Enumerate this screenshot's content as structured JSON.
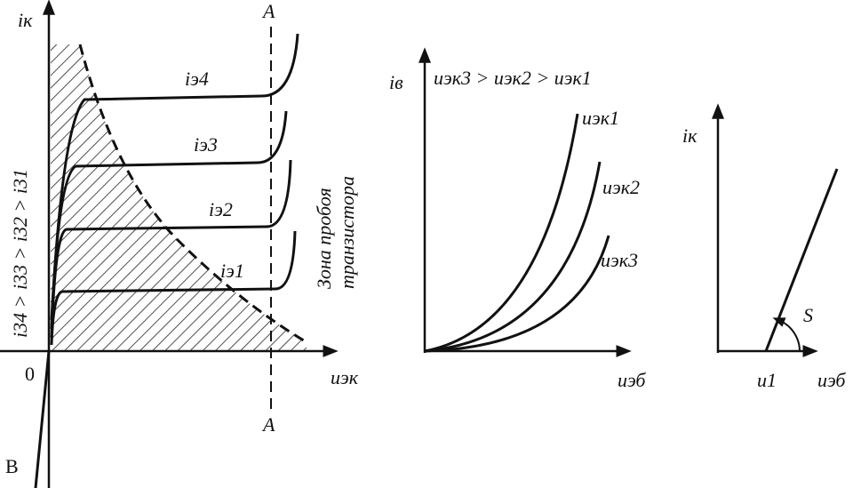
{
  "left": {
    "y_label": "iк",
    "line_top": "A",
    "line_bottom": "A",
    "curves": [
      "iэ4",
      "iэ3",
      "iэ2",
      "iэ1"
    ],
    "zone": [
      "Зона пробоя",
      "транзистора"
    ],
    "order": "i34 > i33 > i32 > i31",
    "origin": "0",
    "x_label": "uэк",
    "corner": "В"
  },
  "middle": {
    "y_label": "iв",
    "order": "uэк3 > uэк2 > uэк1",
    "curves": [
      "uэк1",
      "uэк2",
      "uэк3"
    ],
    "x_label": "uэб"
  },
  "right": {
    "y_label": "iк",
    "slope": "S",
    "threshold": "u1",
    "x_label": "uэб"
  }
}
